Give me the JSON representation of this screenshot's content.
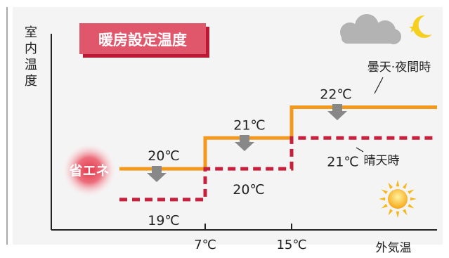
{
  "chart_data": {
    "type": "line",
    "title": "暖房設定温度",
    "ylabel_chars": [
      "室",
      "内",
      "温",
      "度"
    ],
    "xlabel": "外気温",
    "x_ticks": [
      "7℃",
      "15℃"
    ],
    "series": [
      {
        "name": "曇天·夜間時",
        "style": "solid",
        "color": "#f39a1e",
        "steps": [
          {
            "range": "〜7℃",
            "value": 20,
            "label": "20℃"
          },
          {
            "range": "7〜15℃",
            "value": 21,
            "label": "21℃"
          },
          {
            "range": "15℃〜",
            "value": 22,
            "label": "22℃"
          }
        ]
      },
      {
        "name": "晴天時",
        "style": "dashed",
        "color": "#c8203c",
        "steps": [
          {
            "range": "〜7℃",
            "value": 19,
            "label": "19℃"
          },
          {
            "range": "7〜15℃",
            "value": 20,
            "label": "20℃"
          },
          {
            "range": "15℃〜",
            "value": 21,
            "label": "21℃"
          }
        ]
      }
    ],
    "badge_label": "省エネ",
    "weather_icons": [
      "cloud-moon-icon",
      "sun-icon"
    ],
    "colors": {
      "title_bg": "#e0566a",
      "arrow": "#888888",
      "axis": "#222222",
      "badge": "#e03c50"
    }
  }
}
